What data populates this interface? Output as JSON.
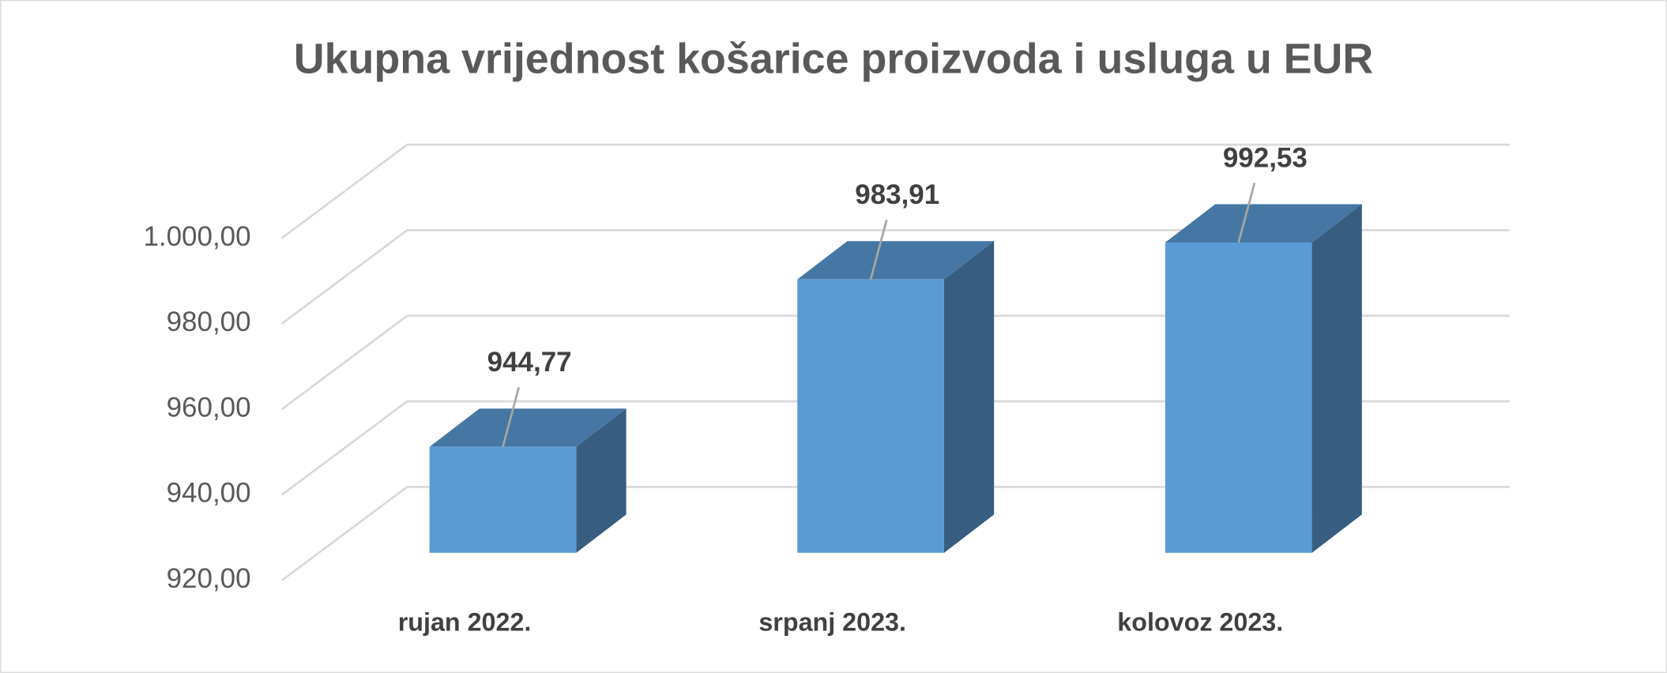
{
  "chart_data": {
    "type": "bar3d",
    "title": "Ukupna vrijednost košarice proizvoda i usluga u EUR",
    "categories": [
      "rujan 2022.",
      "srpanj 2023.",
      "kolovoz 2023."
    ],
    "values": [
      944.77,
      983.91,
      992.53
    ],
    "value_labels": [
      "944,77",
      "983,91",
      "992,53"
    ],
    "color": "#5b9bd5",
    "ylim": [
      920,
      1000
    ],
    "yticks": [
      {
        "value": 920,
        "label": "920,00"
      },
      {
        "value": 940,
        "label": "940,00"
      },
      {
        "value": 960,
        "label": "960,00"
      },
      {
        "value": 980,
        "label": "980,00"
      },
      {
        "value": 1000,
        "label": "1.000,00"
      }
    ],
    "grid": true
  }
}
